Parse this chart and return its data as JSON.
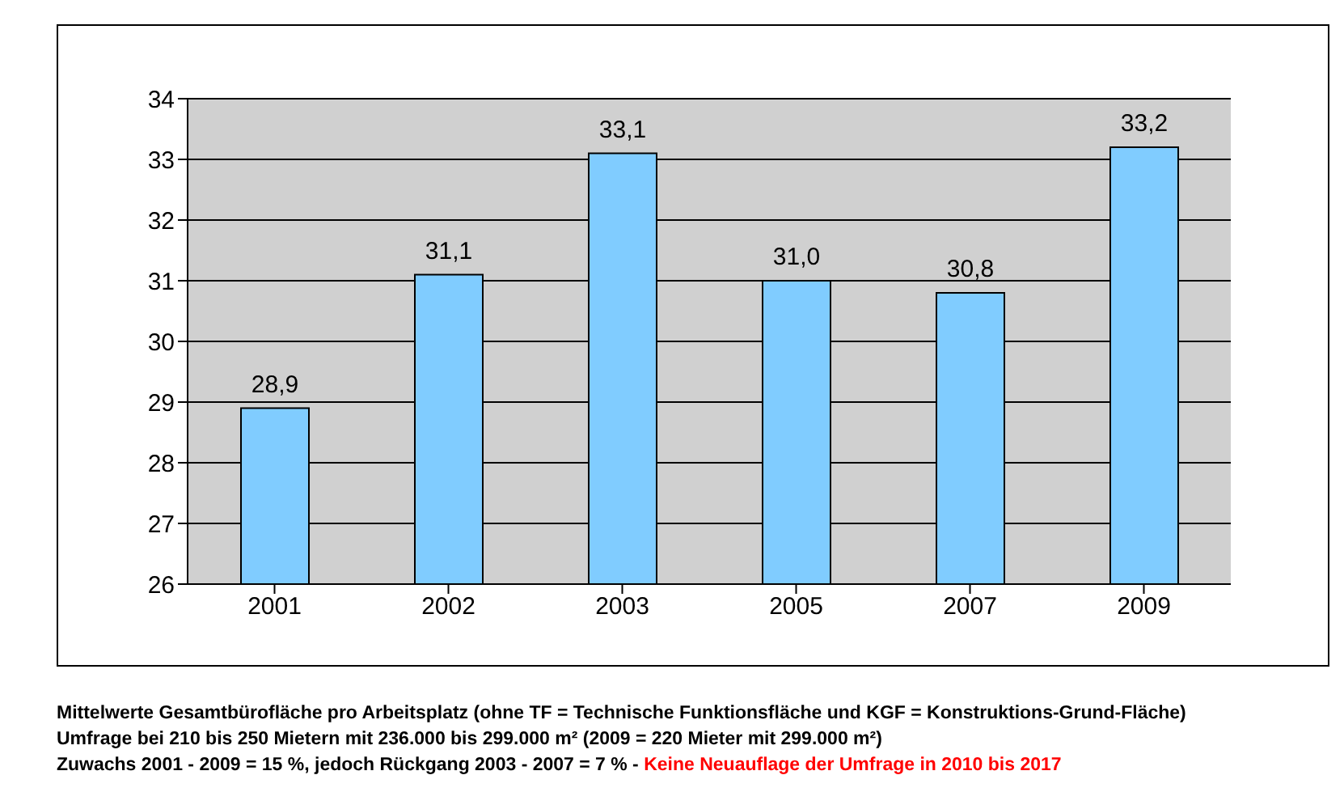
{
  "chart_data": {
    "type": "bar",
    "categories": [
      "2001",
      "2002",
      "2003",
      "2005",
      "2007",
      "2009"
    ],
    "values": [
      28.9,
      31.1,
      33.1,
      31.0,
      30.8,
      33.2
    ],
    "value_labels": [
      "28,9",
      "31,1",
      "33,1",
      "31,0",
      "30,8",
      "33,2"
    ],
    "color": "#80ccff",
    "ylim": [
      26,
      34
    ],
    "yticks": [
      26,
      27,
      28,
      29,
      30,
      31,
      32,
      33,
      34
    ],
    "grid": "y",
    "annotations": [
      "Mittelwerte Gesamtbürofläche pro Arbeitsplatz (ohne TF = Technische Funktionsfläche und KGF = Konstruktions-Grund-Fläche)",
      "Umfrage bei 210 bis 250 Mietern mit 236.000 bis 299.000 m² (2009 = 220 Mieter mit 299.000 m²)",
      "Zuwachs 2001 - 2009 = 15 %, jedoch Rückgang 2003 - 2007 = 7 %   - ",
      "Keine Neuauflage der Umfrage in 2010 bis 2017"
    ]
  }
}
